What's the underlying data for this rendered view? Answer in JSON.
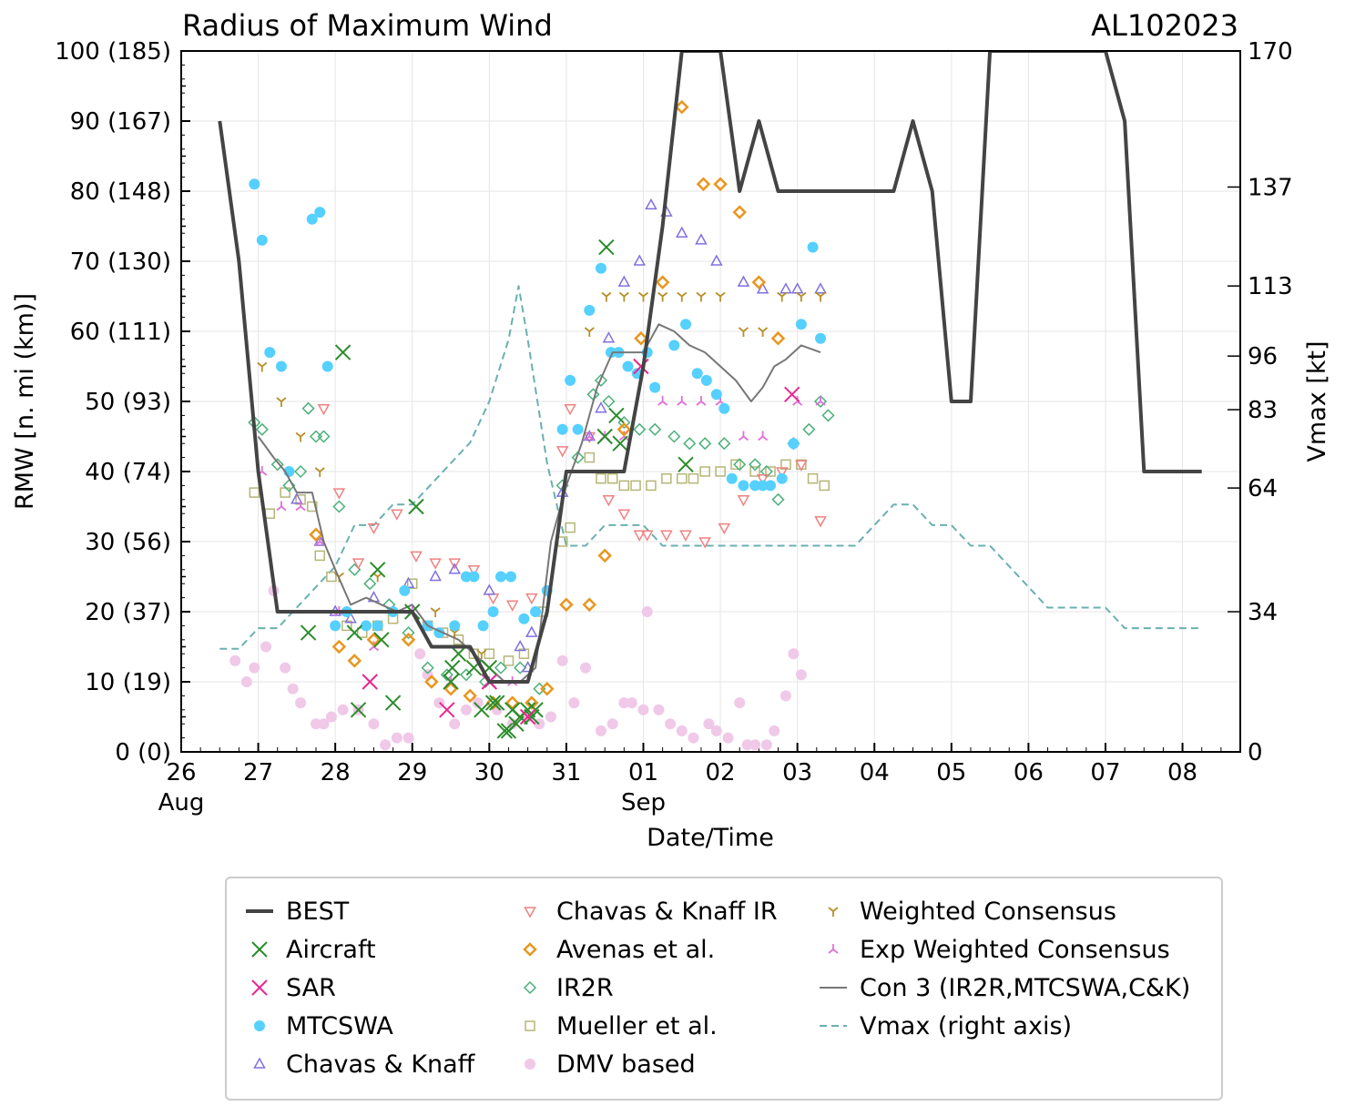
{
  "chart_data": {
    "type": "line",
    "title": "Radius of Maximum Wind",
    "storm_id": "AL102023",
    "xlabel": "Date/Time",
    "ylabel": "RMW [n. mi (km)]",
    "y2label": "Vmax [kt]",
    "ylim": [
      0,
      100
    ],
    "xlim": [
      26.0,
      39.75
    ],
    "y_ticks": [
      "0 (0)",
      "10 (19)",
      "20 (37)",
      "30 (56)",
      "40 (74)",
      "50 (93)",
      "60 (111)",
      "70 (130)",
      "80 (148)",
      "90 (167)",
      "100 (185)"
    ],
    "y2_ticks": [
      {
        "value": 0,
        "label": "0"
      },
      {
        "value": 34,
        "label": "34"
      },
      {
        "value": 64,
        "label": "64"
      },
      {
        "value": 83,
        "label": "83"
      },
      {
        "value": 96,
        "label": "96"
      },
      {
        "value": 113,
        "label": "113"
      },
      {
        "value": 137,
        "label": "137"
      },
      {
        "value": 170,
        "label": "170"
      }
    ],
    "x_ticks": [
      {
        "value": 26,
        "label": "26",
        "sub": "Aug"
      },
      {
        "value": 27,
        "label": "27",
        "sub": ""
      },
      {
        "value": 28,
        "label": "28",
        "sub": ""
      },
      {
        "value": 29,
        "label": "29",
        "sub": ""
      },
      {
        "value": 30,
        "label": "30",
        "sub": ""
      },
      {
        "value": 31,
        "label": "31",
        "sub": ""
      },
      {
        "value": 32,
        "label": "01",
        "sub": "Sep"
      },
      {
        "value": 33,
        "label": "02",
        "sub": ""
      },
      {
        "value": 34,
        "label": "03",
        "sub": ""
      },
      {
        "value": 35,
        "label": "04",
        "sub": ""
      },
      {
        "value": 36,
        "label": "05",
        "sub": ""
      },
      {
        "value": 37,
        "label": "06",
        "sub": ""
      },
      {
        "value": 38,
        "label": "07",
        "sub": ""
      },
      {
        "value": 39,
        "label": "08",
        "sub": ""
      }
    ],
    "series": [
      {
        "name": "BEST",
        "kind": "line",
        "color": "#444444",
        "width": 4,
        "x": [
          26.5,
          26.75,
          27.0,
          27.25,
          27.5,
          27.75,
          28.0,
          28.25,
          28.5,
          28.75,
          29.0,
          29.25,
          29.5,
          29.75,
          30.0,
          30.25,
          30.5,
          30.75,
          31.0,
          31.25,
          31.5,
          31.75,
          32.0,
          32.25,
          32.5,
          32.75,
          33.0,
          33.25,
          33.5,
          33.75,
          34.0,
          34.25,
          34.5,
          34.75,
          35.0,
          35.25,
          35.5,
          35.75,
          36.0,
          36.25,
          36.5,
          36.75,
          37.0,
          37.25,
          37.5,
          37.75,
          38.0,
          38.25,
          38.5,
          38.75,
          39.0,
          39.25
        ],
        "y": [
          90,
          70,
          40,
          20,
          20,
          20,
          20,
          20,
          20,
          20,
          20,
          15,
          15,
          15,
          10,
          10,
          10,
          20,
          40,
          40,
          40,
          40,
          55,
          75,
          100,
          100,
          100,
          80,
          90,
          80,
          80,
          80,
          80,
          80,
          80,
          80,
          90,
          80,
          50,
          50,
          100,
          100,
          100,
          100,
          100,
          100,
          100,
          90,
          40,
          40,
          40,
          40
        ]
      },
      {
        "name": "Aircraft",
        "kind": "x",
        "color": "#2a8c2a",
        "x": [
          27.65,
          28.1,
          28.25,
          28.3,
          28.55,
          28.6,
          28.75,
          29.0,
          29.05,
          29.5,
          29.52,
          29.6,
          29.8,
          29.9,
          30.0,
          30.05,
          30.1,
          30.2,
          30.25,
          30.3,
          30.35,
          30.4,
          30.5,
          30.55,
          30.6,
          31.5,
          31.52,
          31.65,
          31.7,
          32.55
        ],
        "y": [
          17,
          57,
          17,
          6,
          26,
          16,
          7,
          20,
          35,
          10,
          12,
          14,
          12,
          6,
          12,
          7,
          7,
          3,
          3,
          6,
          4,
          5,
          6,
          5,
          6,
          45,
          72,
          48,
          44,
          41
        ]
      },
      {
        "name": "SAR",
        "kind": "x",
        "color": "#e8268f",
        "x": [
          28.45,
          29.45,
          30.0,
          30.5,
          31.97,
          33.93
        ],
        "y": [
          10,
          6,
          10,
          5,
          55,
          51
        ]
      },
      {
        "name": "MTCSWA",
        "kind": "circle",
        "color": "#55d0ff",
        "x": [
          26.95,
          27.05,
          27.15,
          27.3,
          27.4,
          27.7,
          27.8,
          27.9,
          28.0,
          28.15,
          28.4,
          28.55,
          28.75,
          28.9,
          29.2,
          29.35,
          29.55,
          29.7,
          29.8,
          29.92,
          30.05,
          30.15,
          30.28,
          30.45,
          30.6,
          30.75,
          30.95,
          31.05,
          31.15,
          31.3,
          31.45,
          31.58,
          31.68,
          31.8,
          31.92,
          32.05,
          32.15,
          32.4,
          32.55,
          32.7,
          32.82,
          32.95,
          33.05,
          33.15,
          33.3,
          33.45,
          33.55,
          33.65,
          33.8,
          33.95,
          34.05,
          34.2,
          34.3
        ],
        "y": [
          81,
          73,
          57,
          55,
          40,
          76,
          77,
          55,
          18,
          20,
          18,
          18,
          20,
          23,
          18,
          17,
          18,
          25,
          25,
          18,
          20,
          25,
          25,
          19,
          20,
          23,
          46,
          53,
          46,
          63,
          69,
          57,
          57,
          55,
          54,
          57,
          52,
          58,
          61,
          54,
          53,
          51,
          49,
          39,
          38,
          38,
          38,
          38,
          39,
          44,
          61,
          72,
          59
        ]
      },
      {
        "name": "Chavas & Knaff",
        "kind": "tri-up",
        "color": "#8070e0",
        "x": [
          27.5,
          27.8,
          28.0,
          28.2,
          28.5,
          28.95,
          29.3,
          29.55,
          30.0,
          30.4,
          30.5,
          30.55,
          30.95,
          31.3,
          31.45,
          31.55,
          31.75,
          31.95,
          32.1,
          32.3,
          32.5,
          32.75,
          32.95,
          33.3,
          33.55,
          33.85,
          34.0,
          34.3
        ],
        "y": [
          36,
          30,
          20,
          19,
          22,
          24,
          25,
          26,
          23,
          15,
          12,
          17,
          37,
          45,
          49,
          59,
          67,
          70,
          78,
          77,
          74,
          73,
          70,
          67,
          66,
          66,
          66,
          66
        ]
      },
      {
        "name": "Chavas & Knaff IR",
        "kind": "tri-down",
        "color": "#f08080",
        "x": [
          27.85,
          28.05,
          28.3,
          28.5,
          28.8,
          29.05,
          29.3,
          29.55,
          29.8,
          30.05,
          30.3,
          30.55,
          30.95,
          31.05,
          31.3,
          31.55,
          31.75,
          31.95,
          32.05,
          32.3,
          32.55,
          32.8,
          33.05,
          33.3,
          33.55,
          33.8,
          34.05,
          34.3
        ],
        "y": [
          49,
          37,
          27,
          32,
          34,
          28,
          27,
          27,
          26,
          22,
          21,
          22,
          43,
          49,
          45,
          36,
          34,
          31,
          31,
          31,
          31,
          30,
          32,
          36,
          39,
          40,
          41,
          33
        ]
      },
      {
        "name": "Avenas et al.",
        "kind": "diamond",
        "color": "#e8961e",
        "x": [
          27.75,
          28.05,
          28.25,
          28.5,
          28.95,
          29.25,
          29.5,
          29.75,
          30.05,
          30.3,
          30.55,
          30.75,
          31.0,
          31.3,
          31.5,
          31.75,
          31.97,
          32.25,
          32.5,
          32.78,
          33.0,
          33.25,
          33.5,
          33.75
        ],
        "y": [
          31,
          15,
          13,
          16,
          16,
          10,
          9,
          8,
          7,
          7,
          7,
          9,
          21,
          21,
          28,
          46,
          59,
          67,
          92,
          81,
          81,
          77,
          67,
          59
        ]
      },
      {
        "name": "IR2R",
        "kind": "diamond-open",
        "color": "#4ab07a",
        "x": [
          26.95,
          27.05,
          27.25,
          27.4,
          27.55,
          27.65,
          27.75,
          27.85,
          28.05,
          28.25,
          28.45,
          28.7,
          28.95,
          29.2,
          29.45,
          29.7,
          29.95,
          30.15,
          30.4,
          30.65,
          30.95,
          31.15,
          31.35,
          31.45,
          31.55,
          31.75,
          31.95,
          32.15,
          32.4,
          32.6,
          32.8,
          33.05,
          33.25,
          33.45,
          33.6,
          33.75,
          33.95,
          34.15,
          34.3,
          34.4
        ],
        "y": [
          47,
          46,
          41,
          38,
          40,
          49,
          45,
          45,
          35,
          26,
          24,
          21,
          17,
          12,
          11,
          11,
          10,
          12,
          12,
          9,
          38,
          42,
          51,
          53,
          50,
          47,
          46,
          46,
          45,
          44,
          44,
          44,
          41,
          41,
          40,
          36,
          44,
          46,
          50,
          48
        ]
      },
      {
        "name": "Mueller et al.",
        "kind": "square",
        "color": "#b5b577",
        "x": [
          26.95,
          27.15,
          27.35,
          27.55,
          27.7,
          27.8,
          27.95,
          28.15,
          28.35,
          28.55,
          28.75,
          29.0,
          29.2,
          29.4,
          29.6,
          29.8,
          30.0,
          30.25,
          30.45,
          30.7,
          30.95,
          31.05,
          31.3,
          31.45,
          31.6,
          31.75,
          31.9,
          32.1,
          32.3,
          32.5,
          32.65,
          32.8,
          33.0,
          33.2,
          33.45,
          33.65,
          33.85,
          34.05,
          34.2,
          34.35
        ],
        "y": [
          37,
          34,
          37,
          36,
          35,
          28,
          25,
          18,
          17,
          18,
          19,
          24,
          18,
          17,
          16,
          14,
          14,
          13,
          14,
          20,
          30,
          32,
          42,
          39,
          39,
          38,
          38,
          38,
          39,
          39,
          39,
          40,
          40,
          41,
          40,
          40,
          41,
          41,
          39,
          38
        ]
      },
      {
        "name": "DMV based",
        "kind": "circle",
        "color": "#f0c8e8",
        "x": [
          26.7,
          26.85,
          26.95,
          27.1,
          27.2,
          27.35,
          27.45,
          27.55,
          27.75,
          27.85,
          27.95,
          28.1,
          28.3,
          28.5,
          28.65,
          28.8,
          28.95,
          29.1,
          29.2,
          29.35,
          29.55,
          29.7,
          29.85,
          30.1,
          30.3,
          30.5,
          30.65,
          30.8,
          30.95,
          31.1,
          31.25,
          31.45,
          31.6,
          31.75,
          31.85,
          32.0,
          32.05,
          32.2,
          32.35,
          32.5,
          32.65,
          32.85,
          32.95,
          33.1,
          33.25,
          33.35,
          33.45,
          33.6,
          33.7,
          33.85,
          33.95,
          34.05
        ],
        "y": [
          13,
          10,
          12,
          15,
          23,
          12,
          9,
          7,
          4,
          4,
          5,
          6,
          6,
          4,
          1,
          2,
          2,
          14,
          11,
          7,
          4,
          6,
          7,
          6,
          4,
          5,
          4,
          5,
          13,
          7,
          12,
          3,
          4,
          7,
          7,
          6,
          20,
          6,
          4,
          3,
          2,
          4,
          3,
          2,
          7,
          1,
          1,
          1,
          3,
          8,
          14,
          11
        ]
      },
      {
        "name": "Weighted Consensus",
        "kind": "y-down",
        "color": "#b8902a",
        "x": [
          27.05,
          27.3,
          27.55,
          27.8,
          28.05,
          28.55,
          29.3,
          29.55,
          29.9,
          31.3,
          31.52,
          31.75,
          32.0,
          32.25,
          32.5,
          32.75,
          33.0,
          33.3,
          33.55,
          33.8,
          34.05,
          34.3
        ],
        "y": [
          55,
          50,
          45,
          40,
          25,
          25,
          20,
          17,
          14,
          60,
          65,
          65,
          65,
          65,
          65,
          65,
          65,
          60,
          60,
          65,
          65,
          65
        ]
      },
      {
        "name": "Exp Weighted Consensus",
        "kind": "y-up",
        "color": "#e070d8",
        "x": [
          27.05,
          27.3,
          27.55,
          27.8,
          28.05,
          28.5,
          29.0,
          29.5,
          30.0,
          30.3,
          31.3,
          31.5,
          31.75,
          32.25,
          32.5,
          32.75,
          33.0,
          33.3,
          33.55,
          34.0,
          34.3
        ],
        "y": [
          40,
          35,
          35,
          30,
          20,
          15,
          20,
          10,
          10,
          10,
          45,
          45,
          45,
          50,
          50,
          50,
          50,
          45,
          45,
          50,
          50
        ]
      },
      {
        "name": "Con 3 (IR2R,MTCSWA,C&K)",
        "kind": "line",
        "color": "#777777",
        "width": 2,
        "x": [
          27.0,
          27.2,
          27.35,
          27.5,
          27.7,
          27.85,
          28.0,
          28.2,
          28.4,
          28.6,
          28.8,
          29.0,
          29.2,
          29.4,
          29.6,
          29.8,
          30.0,
          30.2,
          30.4,
          30.6,
          30.8,
          31.0,
          31.2,
          31.4,
          31.6,
          31.8,
          32.0,
          32.2,
          32.4,
          32.6,
          32.8,
          33.0,
          33.2,
          33.4,
          33.55,
          33.7,
          33.85,
          34.05,
          34.3
        ],
        "y": [
          45,
          42,
          40,
          37,
          37,
          30,
          26,
          21,
          22,
          21,
          20,
          21,
          18,
          17,
          16,
          14,
          12,
          10,
          10,
          12,
          30,
          38,
          44,
          52,
          57,
          57,
          57,
          61,
          60,
          58,
          57,
          55,
          53,
          50,
          52,
          55,
          56,
          58,
          57
        ]
      },
      {
        "name": "Vmax (right axis)",
        "kind": "dashed",
        "color": "#6ab0b0",
        "axis": "right",
        "x": [
          26.5,
          26.75,
          27.0,
          27.25,
          27.5,
          27.75,
          28.0,
          28.25,
          28.5,
          28.75,
          29.0,
          29.25,
          29.5,
          29.75,
          30.0,
          30.25,
          30.38,
          30.5,
          30.75,
          31.0,
          31.25,
          31.5,
          31.75,
          32.0,
          32.25,
          32.5,
          32.75,
          33.0,
          33.25,
          33.5,
          33.75,
          34.0,
          34.25,
          34.5,
          34.75,
          35.0,
          35.25,
          35.5,
          35.75,
          36.0,
          36.25,
          36.5,
          36.75,
          37.0,
          37.25,
          37.5,
          37.75,
          38.0,
          38.25,
          38.5,
          38.75,
          39.0,
          39.25
        ],
        "y": [
          25,
          25,
          30,
          30,
          35,
          40,
          45,
          55,
          55,
          60,
          60,
          65,
          70,
          75,
          85,
          100,
          113,
          100,
          70,
          50,
          50,
          55,
          55,
          55,
          50,
          50,
          50,
          50,
          50,
          50,
          50,
          50,
          50,
          50,
          50,
          55,
          60,
          60,
          55,
          55,
          50,
          50,
          45,
          40,
          35,
          35,
          35,
          35,
          30,
          30,
          30,
          30,
          30
        ]
      }
    ],
    "legend": {
      "placement": "below",
      "entries": [
        "BEST",
        "Aircraft",
        "SAR",
        "MTCSWA",
        "Chavas & Knaff",
        "Chavas & Knaff IR",
        "Avenas et al.",
        "IR2R",
        "Mueller et al.",
        "DMV based",
        "Weighted Consensus",
        "Exp Weighted Consensus",
        "Con 3 (IR2R,MTCSWA,C&K)",
        "Vmax (right axis)"
      ]
    }
  }
}
